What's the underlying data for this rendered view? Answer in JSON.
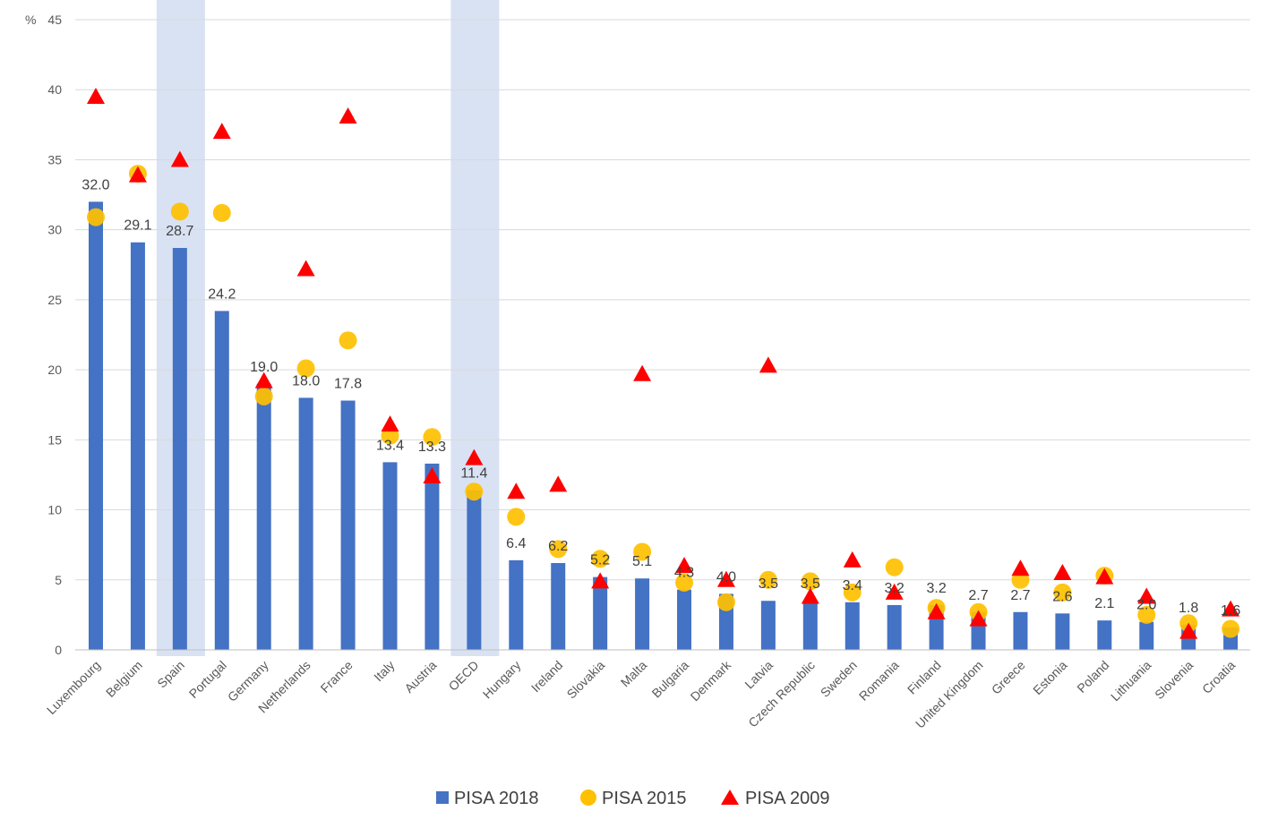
{
  "chart_data": {
    "type": "bar",
    "ylabel": "%",
    "ylim": [
      0,
      45
    ],
    "yticks": [
      "0",
      "5",
      "10",
      "15",
      "20",
      "25",
      "30",
      "35",
      "40",
      "45"
    ],
    "grid": "horizontal",
    "legend_position": "bottom",
    "highlighted_categories": [
      "Spain",
      "OECD"
    ],
    "categories": [
      "Luxembourg",
      "Belgium",
      "Spain",
      "Portugal",
      "Germany",
      "Netherlands",
      "France",
      "Italy",
      "Austria",
      "OECD",
      "Hungary",
      "Ireland",
      "Slovakia",
      "Malta",
      "Bulgaria",
      "Denmark",
      "Latvia",
      "Czech Republic",
      "Sweden",
      "Romania",
      "Finland",
      "United Kingdom",
      "Greece",
      "Estonia",
      "Poland",
      "Lithuania",
      "Slovenia",
      "Croatia"
    ],
    "series": [
      {
        "name": "PISA 2018",
        "marker": "bar",
        "color": "#4472C4",
        "values": [
          32.0,
          29.1,
          28.7,
          24.2,
          19.0,
          18.0,
          17.8,
          13.4,
          13.3,
          11.4,
          6.4,
          6.2,
          5.2,
          5.1,
          4.3,
          4.0,
          3.5,
          3.5,
          3.4,
          3.2,
          3.2,
          2.7,
          2.7,
          2.6,
          2.1,
          2.0,
          1.8,
          1.6
        ],
        "labels": [
          "32.0",
          "29.1",
          "28.7",
          "24.2",
          "19.0",
          "18.0",
          "17.8",
          "13.4",
          "13.3",
          "11.4",
          "6.4",
          "6.2",
          "5.2",
          "5.1",
          "4.3",
          "4.0",
          "3.5",
          "3.5",
          "3.4",
          "3.2",
          "3.2",
          "2.7",
          "2.7",
          "2.6",
          "2.1",
          "2.0",
          "1.8",
          "1.6"
        ]
      },
      {
        "name": "PISA 2015",
        "marker": "circle",
        "color": "#FFC000",
        "values": [
          30.9,
          34.0,
          31.3,
          31.2,
          18.1,
          20.1,
          22.1,
          15.3,
          15.2,
          11.3,
          9.5,
          7.2,
          6.5,
          7.0,
          4.8,
          3.4,
          5.0,
          4.9,
          4.1,
          5.9,
          3.0,
          2.7,
          5.0,
          4.1,
          5.3,
          2.5,
          1.9,
          1.5
        ]
      },
      {
        "name": "PISA 2009",
        "marker": "triangle",
        "color": "#FF0000",
        "values": [
          39.5,
          33.9,
          35.0,
          37.0,
          19.2,
          27.2,
          38.1,
          16.1,
          12.4,
          13.7,
          11.3,
          11.8,
          4.9,
          19.7,
          6.0,
          5.0,
          20.3,
          3.8,
          6.4,
          4.1,
          2.7,
          2.2,
          5.8,
          5.5,
          5.2,
          3.8,
          1.3,
          2.9
        ]
      }
    ]
  },
  "legend": [
    {
      "label": "PISA 2018",
      "color": "#4472C4",
      "marker": "bar"
    },
    {
      "label": "PISA 2015",
      "color": "#FFC000",
      "marker": "circle"
    },
    {
      "label": "PISA 2009",
      "color": "#FF0000",
      "marker": "triangle"
    }
  ]
}
